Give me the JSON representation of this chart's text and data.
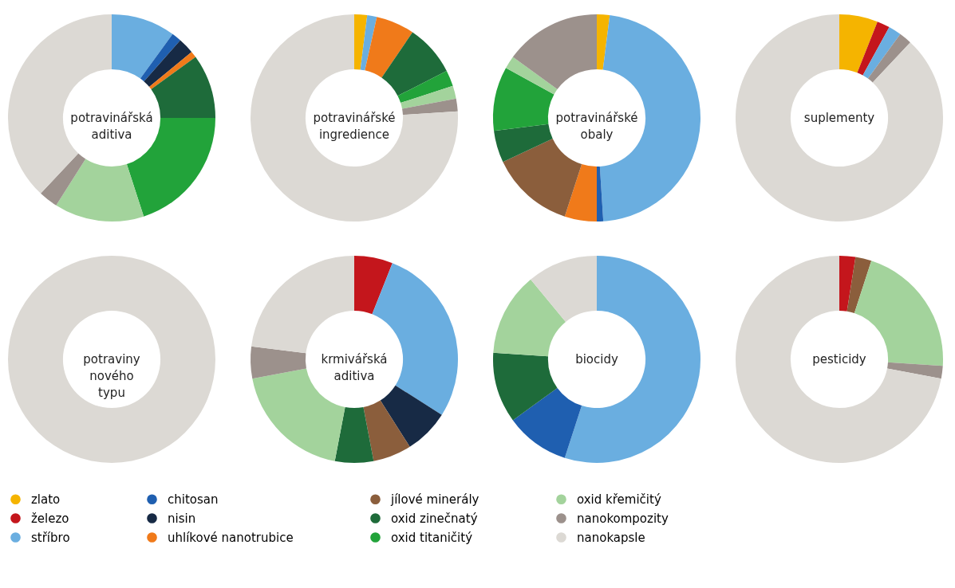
{
  "chart_data": [
    {
      "type": "donut",
      "title": "potravinářská aditiva",
      "legend": "bottom",
      "categories": [
        "zlato",
        "železo",
        "stříbro",
        "chitosan",
        "nisin",
        "uhlíkové nanotrubice",
        "jílové minerály",
        "oxid zinečnatý",
        "oxid titaničitý",
        "oxid křemičitý",
        "nanokompozity",
        "nanokapsle"
      ],
      "values": [
        null,
        null,
        10,
        1.5,
        2.5,
        1,
        null,
        10,
        20,
        14,
        3,
        38
      ],
      "colors": [
        "#f5b400",
        "#c4161c",
        "#6aaee0",
        "#1f5fb0",
        "#172a45",
        "#f07a1a",
        "#8b5e3c",
        "#1e6b3a",
        "#22a33a",
        "#a3d39c",
        "#9c918c",
        "#dcd9d4"
      ]
    },
    {
      "type": "donut",
      "title": "potravinářské ingredience",
      "categories": [
        null,
        null,
        null,
        null,
        null,
        null,
        null,
        null
      ],
      "values": [
        2,
        1.5,
        6,
        8,
        2.5,
        2,
        2,
        76
      ],
      "colors": [
        "#f5b400",
        "#6aaee0",
        "#f07a1a",
        "#1e6b3a",
        "#22a33a",
        "#a3d39c",
        "#9c918c",
        "#dcd9d4"
      ]
    },
    {
      "type": "donut",
      "title": "potravinářské obaly",
      "categories": [
        null,
        null,
        null,
        null,
        null,
        null,
        null,
        null,
        null
      ],
      "values": [
        2,
        47,
        1,
        5,
        13,
        5,
        10,
        2,
        15
      ],
      "colors": [
        "#f5b400",
        "#6aaee0",
        "#1f5fb0",
        "#f07a1a",
        "#8b5e3c",
        "#1e6b3a",
        "#22a33a",
        "#a3d39c",
        "#9c918c"
      ]
    },
    {
      "type": "donut",
      "title": "suplementy",
      "categories": [
        null,
        null,
        null,
        null,
        null
      ],
      "values": [
        6,
        2,
        2,
        2,
        88
      ],
      "colors": [
        "#f5b400",
        "#c4161c",
        "#6aaee0",
        "#9c918c",
        "#dcd9d4"
      ]
    },
    {
      "type": "donut",
      "title": "potraviny nového typu",
      "categories": [
        null
      ],
      "values": [
        100
      ],
      "colors": [
        "#dcd9d4"
      ]
    },
    {
      "type": "donut",
      "title": "krmivářská aditiva",
      "categories": [
        null,
        null,
        null,
        null,
        null,
        null,
        null,
        null
      ],
      "values": [
        6,
        28,
        7,
        6,
        6,
        19,
        5,
        23
      ],
      "colors": [
        "#c4161c",
        "#6aaee0",
        "#172a45",
        "#8b5e3c",
        "#1e6b3a",
        "#a3d39c",
        "#9c918c",
        "#dcd9d4"
      ]
    },
    {
      "type": "donut",
      "title": "biocidy",
      "categories": [
        null,
        null,
        null,
        null,
        null
      ],
      "values": [
        55,
        10,
        11,
        13,
        11
      ],
      "colors": [
        "#6aaee0",
        "#1f5fb0",
        "#1e6b3a",
        "#a3d39c",
        "#dcd9d4"
      ]
    },
    {
      "type": "donut",
      "title": "pesticidy",
      "categories": [
        null,
        null,
        null,
        null,
        null
      ],
      "values": [
        2.5,
        2.5,
        21,
        2,
        72
      ],
      "colors": [
        "#c4161c",
        "#8b5e3c",
        "#a3d39c",
        "#9c918c",
        "#dcd9d4"
      ]
    }
  ]
}
